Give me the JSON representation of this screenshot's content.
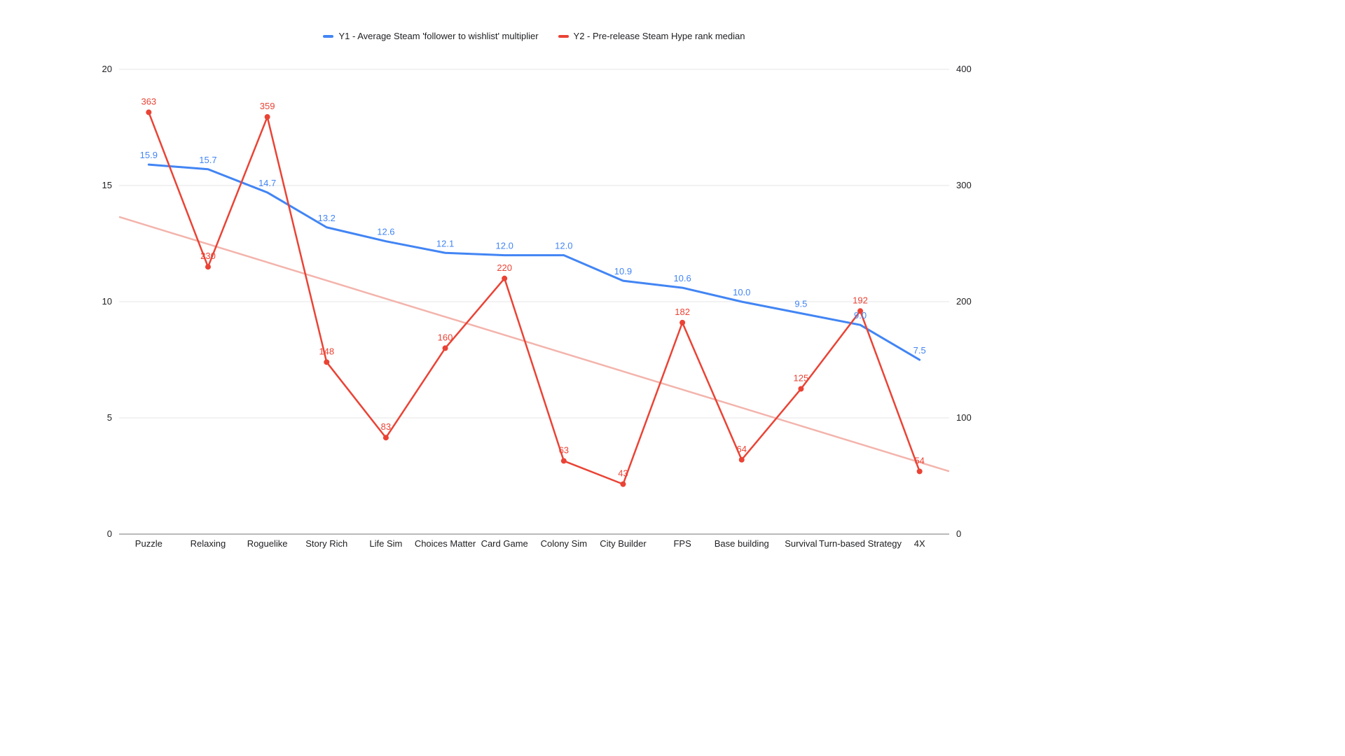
{
  "legend": {
    "items": [
      {
        "label": "Y1 - Average Steam 'follower to wishlist' multiplier",
        "color": "#4285F4"
      },
      {
        "label": "Y2 - Pre-release Steam Hype rank median",
        "color": "#EA4335"
      }
    ]
  },
  "chart_data": {
    "type": "line",
    "title": "",
    "categories": [
      "Puzzle",
      "Relaxing",
      "Roguelike",
      "Story Rich",
      "Life Sim",
      "Choices Matter",
      "Card Game",
      "Colony Sim",
      "City Builder",
      "FPS",
      "Base building",
      "Survival",
      "Turn-based Strategy",
      "4X"
    ],
    "series": [
      {
        "name": "Y1 - Average Steam 'follower to wishlist' multiplier",
        "axis": "left",
        "color": "#4285F4",
        "label_format": "fixed1",
        "point_markers": false,
        "values": [
          15.9,
          15.7,
          14.7,
          13.2,
          12.6,
          12.1,
          12.0,
          12.0,
          10.9,
          10.6,
          10.0,
          9.5,
          9.0,
          7.5
        ]
      },
      {
        "name": "Y2 - Pre-release Steam Hype rank median",
        "axis": "right",
        "color": "#EA4335",
        "label_format": "int",
        "point_markers": true,
        "values": [
          363,
          230,
          359,
          148,
          83,
          160,
          220,
          63,
          43,
          182,
          64,
          125,
          192,
          54
        ]
      }
    ],
    "trendline": {
      "series": "Y2 - Pre-release Steam Hype rank median",
      "axis": "right",
      "color": "#F3B4AC",
      "start_value": 273,
      "end_value": 54
    },
    "left_axis": {
      "min": 0,
      "max": 20,
      "ticks": [
        0,
        5,
        10,
        15,
        20
      ]
    },
    "right_axis": {
      "min": 0,
      "max": 400,
      "ticks": [
        0,
        100,
        200,
        300,
        400
      ]
    },
    "grid": true,
    "legend_position": "top",
    "background": "#ffffff"
  }
}
